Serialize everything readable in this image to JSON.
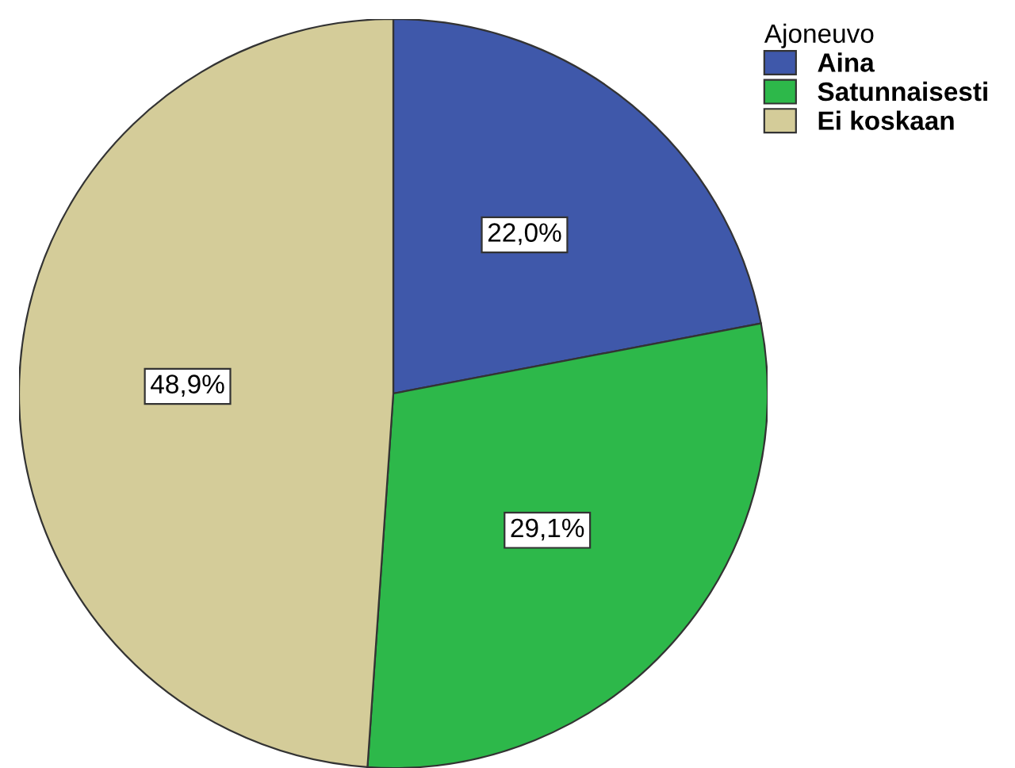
{
  "chart_data": {
    "type": "pie",
    "legend_title": "Ajoneuvo",
    "legend": "top right",
    "categories": [
      "Aina",
      "Satunnaisesti",
      "Ei koskaan"
    ],
    "values": [
      22.0,
      29.1,
      48.9
    ],
    "colors": [
      "#3f58aa",
      "#2db84a",
      "#d4cc99"
    ],
    "value_labels": [
      "22,0%",
      "29,1%",
      "48,9%"
    ]
  }
}
